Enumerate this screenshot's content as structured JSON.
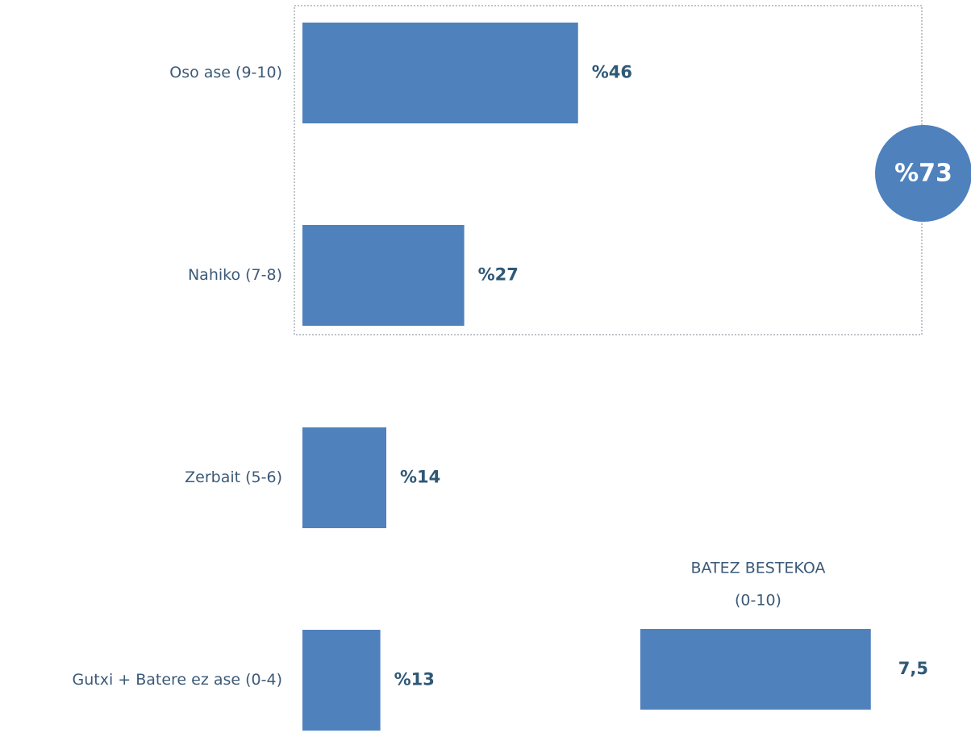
{
  "chart_data": [
    {
      "type": "bar",
      "orientation": "horizontal",
      "categories": [
        "Oso ase (9-10)",
        "Nahiko  (7-8)",
        "Zerbait (5-6)",
        "Gutxi + Batere ez ase (0-4)"
      ],
      "values": [
        46,
        27,
        14,
        13
      ],
      "value_labels": [
        "%46",
        "%27",
        "%14",
        "%13"
      ],
      "color": "#4f81bd",
      "annotation": "%73"
    },
    {
      "type": "bar",
      "orientation": "horizontal",
      "title": "BATEZ BESTEKOA",
      "subtitle": "(0-10)",
      "values": [
        7.5
      ],
      "value_labels": [
        "7,5"
      ],
      "color": "#4f81bd"
    }
  ]
}
